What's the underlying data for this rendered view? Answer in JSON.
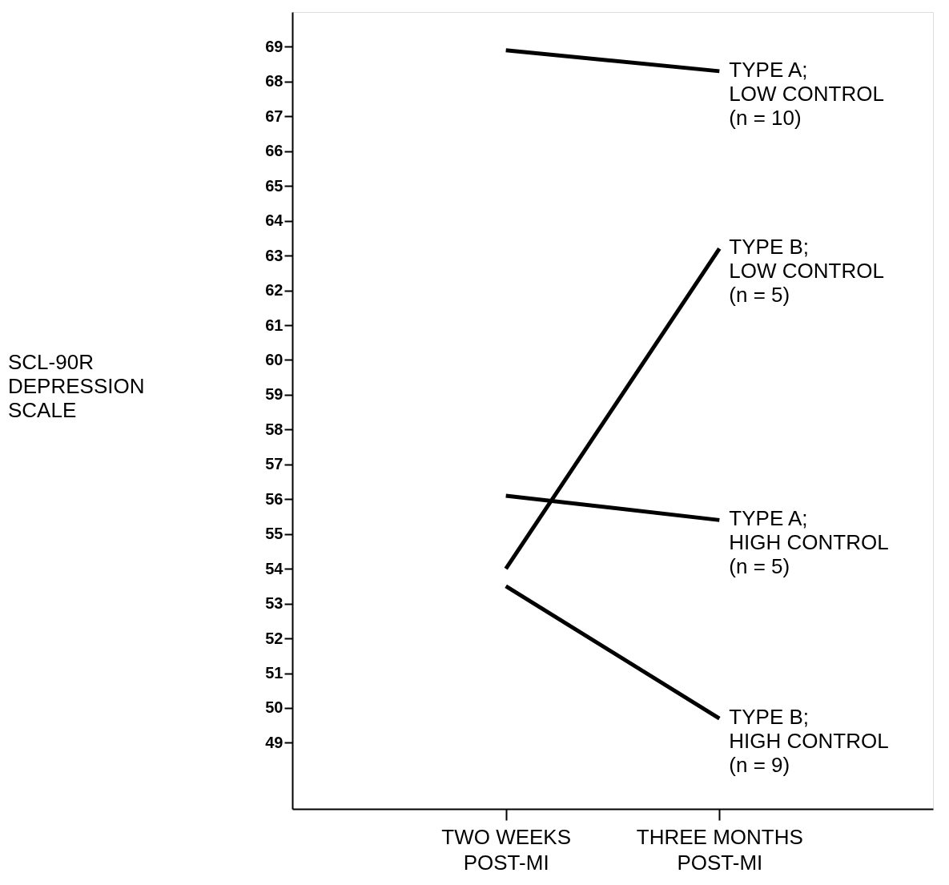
{
  "chart_data": {
    "type": "line",
    "annotations": [
      "SCL-90R\nDEPRESSION\nSCALE"
    ],
    "categories": [
      "TWO WEEKS\nPOST-MI",
      "THREE MONTHS\nPOST-MI"
    ],
    "series": [
      {
        "name": "TYPE A;\nLOW CONTROL\n(n = 10)",
        "color": "#000000",
        "values": [
          68.9,
          68.3
        ]
      },
      {
        "name": "TYPE B;\nLOW CONTROL\n(n = 5)",
        "color": "#000000",
        "values": [
          54.0,
          63.2
        ]
      },
      {
        "name": "TYPE A;\nHIGH CONTROL\n(n = 5)",
        "color": "#000000",
        "values": [
          56.1,
          55.4
        ]
      },
      {
        "name": "TYPE B;\nHIGH CONTROL\n(n = 9)",
        "color": "#000000",
        "values": [
          53.5,
          49.7
        ]
      }
    ],
    "ylim": [
      47.1,
      70
    ],
    "yticks": [
      49,
      50,
      51,
      52,
      53,
      54,
      55,
      56,
      57,
      58,
      59,
      60,
      61,
      62,
      63,
      64,
      65,
      66,
      67,
      68,
      69
    ],
    "grid": false,
    "marker": "none",
    "line_style": "solid"
  }
}
